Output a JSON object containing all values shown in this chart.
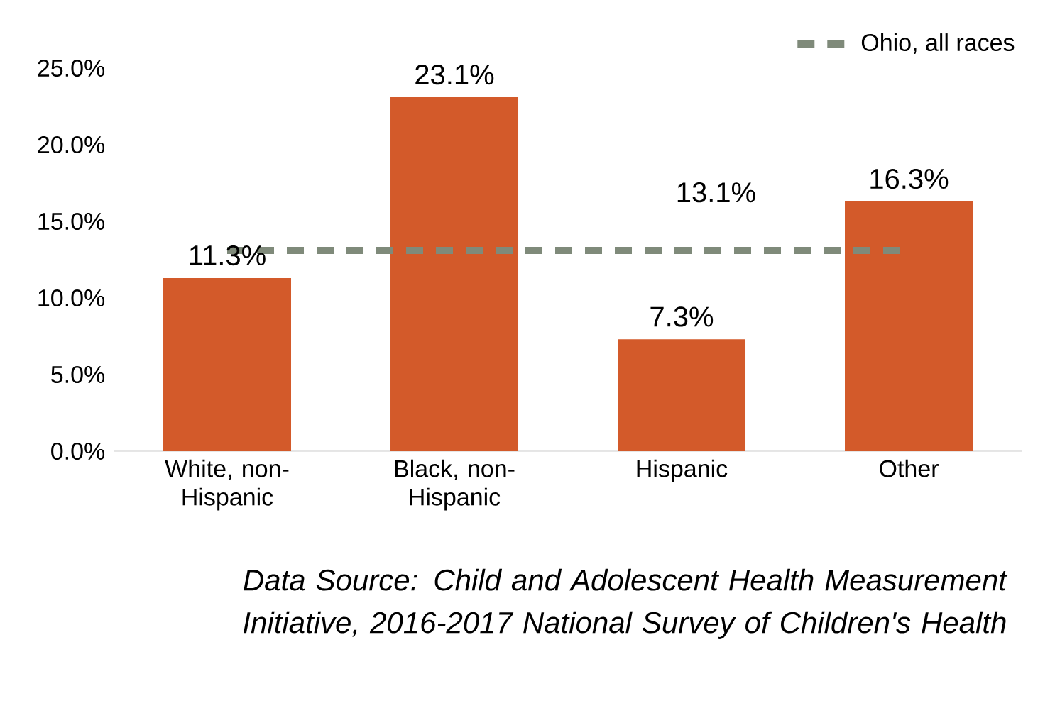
{
  "chart_data": {
    "type": "bar",
    "categories": [
      "White, non-Hispanic",
      "Black, non-Hispanic",
      "Hispanic",
      "Other"
    ],
    "series": [
      {
        "color": "#d35a2a",
        "values": [
          11.3,
          23.1,
          7.3,
          16.3
        ],
        "value_labels": [
          "11.3%",
          "23.1%",
          "7.3%",
          "16.3%"
        ]
      },
      {
        "type": "line",
        "name": "Ohio, all races",
        "color": "#7f8a7a",
        "line_style": "dashed",
        "values": [
          13.1,
          13.1,
          13.1,
          13.1
        ],
        "value_labels": [
          null,
          null,
          "13.1%",
          null
        ]
      }
    ],
    "ylim": [
      0,
      25
    ],
    "yticks": [
      {
        "value": 0,
        "label": "0.0%"
      },
      {
        "value": 5,
        "label": "5.0%"
      },
      {
        "value": 10,
        "label": "10.0%"
      },
      {
        "value": 15,
        "label": "15.0%"
      },
      {
        "value": 20,
        "label": "20.0%"
      },
      {
        "value": 25,
        "label": "25.0%"
      }
    ],
    "legend": "top right",
    "marker": "none",
    "annotations": [
      "Data Source: Child and Adolescent Health Measurement Initiative, 2016-2017 National Survey of Children's Health"
    ]
  }
}
